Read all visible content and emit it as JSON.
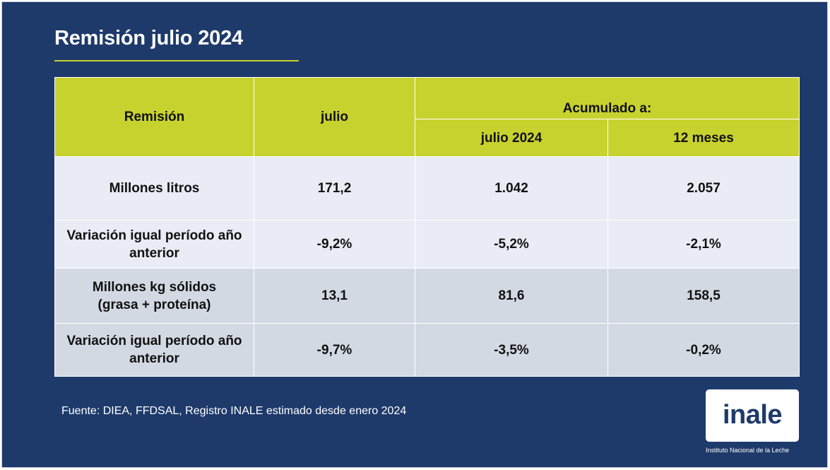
{
  "slide": {
    "title": "Remisión julio 2024",
    "source": "Fuente: DIEA, FFDSAL, Registro INALE estimado desde enero 2024",
    "logo_text": "inale",
    "logo_subtitle": "Instituto Nacional de la Leche"
  },
  "table": {
    "header": {
      "col1": "Remisión",
      "col2": "julio",
      "group": "Acumulado a:",
      "col3": "julio 2024",
      "col4": "12 meses"
    },
    "rows": [
      {
        "label": "Millones litros",
        "julio": "171,2",
        "acum_julio": "1.042",
        "acum_12": "2.057"
      },
      {
        "label": "Variación igual período año anterior",
        "julio": "-9,2%",
        "acum_julio": "-5,2%",
        "acum_12": "-2,1%"
      },
      {
        "label": "Millones kg sólidos (grasa + proteína)",
        "julio": "13,1",
        "acum_julio": "81,6",
        "acum_12": "158,5"
      },
      {
        "label": "Variación igual período año anterior",
        "julio": "-9,7%",
        "acum_julio": "-3,5%",
        "acum_12": "-0,2%"
      }
    ]
  },
  "colors": {
    "background": "#1e3a6b",
    "accent": "#c8d22f",
    "row_light": "#e9ecf5",
    "row_dark": "#d3d9e3"
  }
}
